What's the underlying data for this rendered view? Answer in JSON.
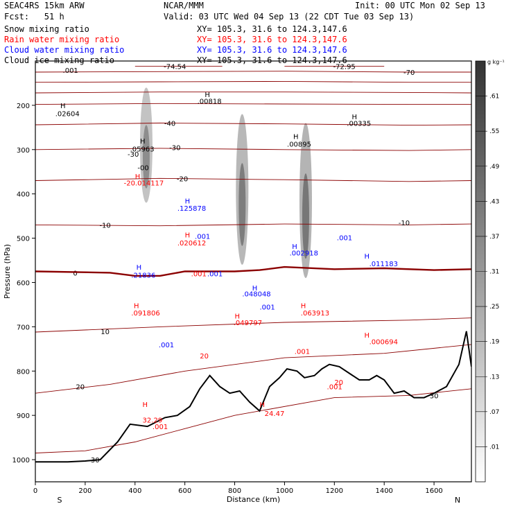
{
  "header": {
    "model": "SEAC4RS 15km ARW",
    "org": "NCAR/MMM",
    "init": "Init: 00 UTC Mon 02 Sep 13",
    "fcst": "Fcst:   51 h",
    "valid": "Valid: 03 UTC Wed 04 Sep 13 (22 CDT Tue 03 Sep 13)",
    "fields": [
      {
        "name": "Snow mixing ratio",
        "xy": "XY= 105.3, 31.6 to 124.3,147.6",
        "color": "#000000"
      },
      {
        "name": "Rain water mixing ratio",
        "xy": "XY= 105.3, 31.6 to 124.3,147.6",
        "color": "#ff0000"
      },
      {
        "name": "Cloud water mixing ratio",
        "xy": "XY= 105.3, 31.6 to 124.3,147.6",
        "color": "#0000ff"
      },
      {
        "name": "Cloud ice mixing ratio",
        "xy": "XY= 105.3, 31.6 to 124.3,147.6",
        "color": "#000000"
      }
    ]
  },
  "chart_data": {
    "type": "cross-section",
    "xlabel": "Distance (km)",
    "ylabel": "Pressure (hPa)",
    "xlim": [
      0,
      1750
    ],
    "ylim": [
      1050,
      100
    ],
    "x_ticks": [
      0,
      200,
      400,
      600,
      800,
      1000,
      1200,
      1400,
      1600
    ],
    "y_ticks": [
      1000,
      900,
      800,
      700,
      600,
      500,
      400,
      300,
      200
    ],
    "left_label": "S",
    "right_label": "N",
    "colorbar": {
      "unit": "g kg⁻¹",
      "levels": [
        ".01",
        ".07",
        ".13",
        ".19",
        ".25",
        ".31",
        ".37",
        ".43",
        ".49",
        ".55",
        ".61"
      ]
    },
    "shading": [
      {
        "x": 445,
        "p_top": 160,
        "p_bot": 420,
        "peak": 0.55
      },
      {
        "x": 830,
        "p_top": 220,
        "p_bot": 560,
        "peak": 0.65
      },
      {
        "x": 1085,
        "p_top": 240,
        "p_bot": 590,
        "peak": 0.68
      }
    ],
    "terrain": [
      [
        0,
        1005
      ],
      [
        130,
        1005
      ],
      [
        200,
        1003
      ],
      [
        260,
        1000
      ],
      [
        330,
        960
      ],
      [
        380,
        920
      ],
      [
        450,
        925
      ],
      [
        520,
        905
      ],
      [
        570,
        900
      ],
      [
        620,
        880
      ],
      [
        660,
        840
      ],
      [
        700,
        810
      ],
      [
        740,
        835
      ],
      [
        780,
        850
      ],
      [
        820,
        845
      ],
      [
        860,
        870
      ],
      [
        900,
        890
      ],
      [
        940,
        835
      ],
      [
        980,
        815
      ],
      [
        1010,
        795
      ],
      [
        1050,
        800
      ],
      [
        1080,
        815
      ],
      [
        1120,
        810
      ],
      [
        1150,
        795
      ],
      [
        1180,
        785
      ],
      [
        1220,
        790
      ],
      [
        1260,
        805
      ],
      [
        1300,
        820
      ],
      [
        1340,
        820
      ],
      [
        1370,
        810
      ],
      [
        1400,
        820
      ],
      [
        1440,
        850
      ],
      [
        1480,
        845
      ],
      [
        1520,
        860
      ],
      [
        1560,
        860
      ],
      [
        1600,
        850
      ],
      [
        1650,
        835
      ],
      [
        1700,
        785
      ],
      [
        1730,
        710
      ],
      [
        1750,
        790
      ]
    ],
    "freezing_level": [
      [
        0,
        575
      ],
      [
        300,
        578
      ],
      [
        400,
        585
      ],
      [
        500,
        585
      ],
      [
        600,
        575
      ],
      [
        800,
        575
      ],
      [
        900,
        572
      ],
      [
        1000,
        565
      ],
      [
        1200,
        570
      ],
      [
        1400,
        568
      ],
      [
        1600,
        572
      ],
      [
        1750,
        570
      ]
    ],
    "isotherms": [
      {
        "label": "-70",
        "lx": 1500,
        "lp": 125,
        "pts": [
          [
            0,
            125
          ],
          [
            500,
            124
          ],
          [
            1000,
            123
          ],
          [
            1500,
            125
          ],
          [
            1750,
            125
          ]
        ]
      },
      {
        "label": "-74.54",
        "lx": 560,
        "lp": 112,
        "pts": [
          [
            400,
            112
          ],
          [
            750,
            112
          ]
        ]
      },
      {
        "label": "-72.95",
        "lx": 1240,
        "lp": 112,
        "pts": [
          [
            1000,
            112
          ],
          [
            1400,
            112
          ]
        ]
      },
      {
        "label": "",
        "lx": 0,
        "lp": 0,
        "pts": [
          [
            0,
            148
          ],
          [
            500,
            147
          ],
          [
            1000,
            146
          ],
          [
            1500,
            148
          ],
          [
            1750,
            148
          ]
        ]
      },
      {
        "label": "",
        "lx": 0,
        "lp": 0,
        "pts": [
          [
            0,
            172
          ],
          [
            500,
            170
          ],
          [
            1000,
            170
          ],
          [
            1500,
            171
          ],
          [
            1750,
            172
          ]
        ]
      },
      {
        "label": "",
        "lx": 0,
        "lp": 0,
        "pts": [
          [
            0,
            198
          ],
          [
            500,
            196
          ],
          [
            1000,
            197
          ],
          [
            1500,
            198
          ],
          [
            1750,
            198
          ]
        ]
      },
      {
        "label": "-40",
        "lx": 540,
        "lp": 240,
        "pts": [
          [
            0,
            244
          ],
          [
            500,
            240
          ],
          [
            1000,
            242
          ],
          [
            1500,
            245
          ],
          [
            1750,
            244
          ]
        ]
      },
      {
        "label": "-30",
        "lx": 560,
        "lp": 295,
        "pts": [
          [
            0,
            300
          ],
          [
            500,
            297
          ],
          [
            1000,
            300
          ],
          [
            1500,
            302
          ],
          [
            1750,
            300
          ]
        ]
      },
      {
        "label": "-20",
        "lx": 590,
        "lp": 365,
        "pts": [
          [
            0,
            370
          ],
          [
            500,
            365
          ],
          [
            1000,
            368
          ],
          [
            1500,
            372
          ],
          [
            1750,
            370
          ]
        ]
      },
      {
        "label": "-10",
        "lx": 280,
        "lp": 470,
        "pts": [
          [
            0,
            470
          ],
          [
            500,
            472
          ],
          [
            1000,
            468
          ],
          [
            1500,
            470
          ],
          [
            1750,
            468
          ]
        ]
      },
      {
        "label": "-10",
        "lx": 1480,
        "lp": 465,
        "pts": []
      },
      {
        "label": "0",
        "lx": 160,
        "lp": 578,
        "pts": []
      },
      {
        "label": "10",
        "lx": 280,
        "lp": 710,
        "pts": [
          [
            0,
            712
          ],
          [
            500,
            700
          ],
          [
            1000,
            690
          ],
          [
            1500,
            685
          ],
          [
            1750,
            680
          ]
        ]
      },
      {
        "label": "20",
        "lx": 180,
        "lp": 835,
        "pts": [
          [
            0,
            850
          ],
          [
            300,
            830
          ],
          [
            600,
            800
          ],
          [
            1000,
            770
          ],
          [
            1400,
            760
          ],
          [
            1750,
            740
          ]
        ]
      },
      {
        "label": "30",
        "lx": 240,
        "lp": 1000,
        "pts": [
          [
            0,
            985
          ],
          [
            200,
            980
          ],
          [
            400,
            960
          ],
          [
            600,
            930
          ],
          [
            800,
            900
          ],
          [
            1200,
            860
          ],
          [
            1500,
            855
          ],
          [
            1750,
            840
          ]
        ]
      },
      {
        "label": "30",
        "lx": 1600,
        "lp": 855,
        "pts": []
      }
    ],
    "annotations": [
      {
        "text": ".001",
        "x": 110,
        "p": 120,
        "color": "#000000"
      },
      {
        "text": "H",
        "x": 100,
        "p": 200,
        "color": "#000000"
      },
      {
        "text": ".02604",
        "x": 80,
        "p": 218,
        "color": "#000000"
      },
      {
        "text": "H",
        "x": 420,
        "p": 280,
        "color": "#000000"
      },
      {
        "text": ".05963",
        "x": 380,
        "p": 298,
        "color": "#000000"
      },
      {
        "text": "-30",
        "x": 370,
        "p": 310,
        "color": "#000000"
      },
      {
        "text": "-00",
        "x": 410,
        "p": 340,
        "color": "#000000"
      },
      {
        "text": "H",
        "x": 400,
        "p": 360,
        "color": "#ff0000"
      },
      {
        "text": "-20.014117",
        "x": 355,
        "p": 375,
        "color": "#ff0000"
      },
      {
        "text": "H",
        "x": 680,
        "p": 175,
        "color": "#000000"
      },
      {
        "text": ".00818",
        "x": 650,
        "p": 190,
        "color": "#000000"
      },
      {
        "text": "H",
        "x": 1035,
        "p": 270,
        "color": "#000000"
      },
      {
        "text": ".00895",
        "x": 1010,
        "p": 287,
        "color": "#000000"
      },
      {
        "text": "H",
        "x": 1270,
        "p": 225,
        "color": "#000000"
      },
      {
        "text": ".00335",
        "x": 1250,
        "p": 240,
        "color": "#000000"
      },
      {
        "text": "H",
        "x": 600,
        "p": 415,
        "color": "#0000ff"
      },
      {
        "text": ".125878",
        "x": 570,
        "p": 432,
        "color": "#0000ff"
      },
      {
        "text": "H",
        "x": 600,
        "p": 492,
        "color": "#ff0000"
      },
      {
        "text": ".001",
        "x": 640,
        "p": 495,
        "color": "#0000ff"
      },
      {
        "text": ".020612",
        "x": 570,
        "p": 510,
        "color": "#ff0000"
      },
      {
        "text": "H",
        "x": 405,
        "p": 565,
        "color": "#0000ff"
      },
      {
        "text": ".21836",
        "x": 385,
        "p": 583,
        "color": "#0000ff"
      },
      {
        "text": ".001",
        "x": 625,
        "p": 580,
        "color": "#ff0000"
      },
      {
        "text": ".001",
        "x": 690,
        "p": 580,
        "color": "#0000ff"
      },
      {
        "text": "H",
        "x": 870,
        "p": 612,
        "color": "#0000ff"
      },
      {
        "text": ".048048",
        "x": 830,
        "p": 625,
        "color": "#0000ff"
      },
      {
        "text": ".001",
        "x": 900,
        "p": 655,
        "color": "#0000ff"
      },
      {
        "text": "H",
        "x": 1030,
        "p": 518,
        "color": "#0000ff"
      },
      {
        "text": ".002918",
        "x": 1020,
        "p": 533,
        "color": "#0000ff"
      },
      {
        "text": ".001",
        "x": 1210,
        "p": 498,
        "color": "#0000ff"
      },
      {
        "text": "H",
        "x": 1320,
        "p": 540,
        "color": "#0000ff"
      },
      {
        "text": ".011183",
        "x": 1340,
        "p": 557,
        "color": "#0000ff"
      },
      {
        "text": "H",
        "x": 395,
        "p": 652,
        "color": "#ff0000"
      },
      {
        "text": ".091806",
        "x": 385,
        "p": 668,
        "color": "#ff0000"
      },
      {
        "text": "H",
        "x": 800,
        "p": 675,
        "color": "#ff0000"
      },
      {
        "text": ".049797",
        "x": 795,
        "p": 690,
        "color": "#ff0000"
      },
      {
        "text": "H",
        "x": 1065,
        "p": 652,
        "color": "#ff0000"
      },
      {
        "text": ".063913",
        "x": 1065,
        "p": 668,
        "color": "#ff0000"
      },
      {
        "text": "H",
        "x": 1320,
        "p": 718,
        "color": "#ff0000"
      },
      {
        "text": ".000694",
        "x": 1340,
        "p": 733,
        "color": "#ff0000"
      },
      {
        "text": ".001",
        "x": 1040,
        "p": 755,
        "color": "#ff0000"
      },
      {
        "text": "20",
        "x": 660,
        "p": 765,
        "color": "#ff0000"
      },
      {
        "text": ".001",
        "x": 495,
        "p": 740,
        "color": "#0000ff"
      },
      {
        "text": "H",
        "x": 430,
        "p": 875,
        "color": "#ff0000"
      },
      {
        "text": "32.29",
        "x": 430,
        "p": 910,
        "color": "#ff0000"
      },
      {
        "text": ".001",
        "x": 470,
        "p": 925,
        "color": "#ff0000"
      },
      {
        "text": "H",
        "x": 900,
        "p": 875,
        "color": "#ff0000"
      },
      {
        "text": "24.47",
        "x": 920,
        "p": 895,
        "color": "#ff0000"
      },
      {
        "text": "20",
        "x": 1200,
        "p": 825,
        "color": "#ff0000"
      },
      {
        "text": ".001",
        "x": 1170,
        "p": 835,
        "color": "#ff0000"
      }
    ]
  }
}
